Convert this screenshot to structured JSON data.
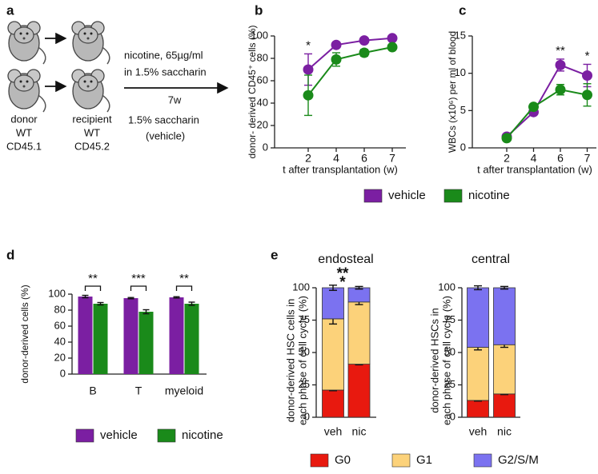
{
  "diagram": {
    "panel": "a",
    "donor": [
      "donor",
      "WT",
      "CD45.1"
    ],
    "recipient": [
      "recipient",
      "WT",
      "CD45.2"
    ],
    "treatment": [
      "nicotine, 65µg/ml",
      "in 1.5% saccharin"
    ],
    "duration": "7w",
    "control": [
      "1.5% saccharin",
      "(vehicle)"
    ]
  },
  "chart_data": [
    {
      "type": "line",
      "panel": "b",
      "xlabel": "t after transplantation (w)",
      "ylabel": "donor- derived CD45⁺ cells (%)",
      "categories": [
        "2",
        "4",
        "6",
        "7"
      ],
      "series": [
        {
          "name": "vehicle",
          "color": "#7b1fa2",
          "values": [
            70,
            92,
            96,
            98
          ],
          "errors": [
            14,
            2,
            2,
            1.5
          ]
        },
        {
          "name": "nicotine",
          "color": "#1a8a1a",
          "values": [
            47,
            79,
            85,
            90
          ],
          "errors": [
            18,
            6,
            3,
            2
          ]
        }
      ],
      "annotations": [
        "*",
        null,
        null,
        null
      ],
      "ylim": [
        0,
        100
      ],
      "yticks": [
        0,
        20,
        40,
        60,
        80,
        100
      ],
      "grid": false
    },
    {
      "type": "line",
      "panel": "c",
      "xlabel": "t after transplantation (w)",
      "ylabel": "WBCs (x10⁶) per ml of blood",
      "categories": [
        "2",
        "4",
        "6",
        "7"
      ],
      "series": [
        {
          "color": "#7b1fa2",
          "values": [
            1.5,
            4.8,
            11.1,
            9.7
          ],
          "errors": [
            0.2,
            0.3,
            0.8,
            1.5
          ]
        },
        {
          "color": "#1a8a1a",
          "values": [
            1.3,
            5.5,
            7.8,
            7.1
          ],
          "errors": [
            0.2,
            0.4,
            0.7,
            1.5
          ]
        }
      ],
      "annotations": [
        null,
        null,
        "**",
        "*"
      ],
      "ylim": [
        0,
        15
      ],
      "yticks": [
        0,
        5,
        10,
        15
      ],
      "grid": false
    },
    {
      "type": "bar",
      "panel": "d",
      "ylabel": "donor-derived  cells (%)",
      "categories": [
        "B",
        "T",
        "myeloid"
      ],
      "series": [
        {
          "name": "vehicle",
          "color": "#7b1fa2",
          "values": [
            97,
            95,
            96
          ],
          "errors": [
            1.5,
            0.8,
            0.8
          ]
        },
        {
          "name": "nicotine",
          "color": "#1a8a1a",
          "values": [
            88,
            78,
            88
          ],
          "errors": [
            1.5,
            2.5,
            2
          ]
        }
      ],
      "annotations": [
        "**",
        "***",
        "**"
      ],
      "ylim": [
        0,
        100
      ],
      "yticks": [
        0,
        20,
        40,
        60,
        80,
        100
      ],
      "grid": false
    },
    {
      "type": "stacked_bar",
      "panel": "e",
      "title": "endosteal",
      "ylabel": [
        "donor-derived HSC cells in",
        "each phase of cell cycle (%)"
      ],
      "categories": [
        "veh",
        "nic"
      ],
      "series": [
        {
          "name": "G0",
          "color": "#e8190f",
          "values": [
            21,
            41
          ],
          "errors": [
            0.5,
            0.5
          ]
        },
        {
          "name": "G1",
          "color": "#fcd27a",
          "values": [
            55,
            48
          ],
          "errors": [
            4,
            2
          ]
        },
        {
          "name": "G2/S/M",
          "color": "#7b72f0",
          "values": [
            24,
            11
          ],
          "errors": [
            2,
            1
          ]
        }
      ],
      "annotations": [
        {
          "text": "**",
          "color": "#7b72f0"
        },
        {
          "text": "*",
          "color": "#e8190f"
        }
      ],
      "ylim": [
        0,
        100
      ],
      "yticks": [
        0,
        25,
        50,
        75,
        100
      ],
      "grid": false
    },
    {
      "type": "stacked_bar",
      "title": "central",
      "ylabel": [
        "donor-derived HSCs in",
        "each phase of cell cycle (%)"
      ],
      "categories": [
        "veh",
        "nic"
      ],
      "series": [
        {
          "color": "#e8190f",
          "values": [
            13,
            18
          ],
          "errors": [
            0.5,
            0.5
          ]
        },
        {
          "color": "#fcd27a",
          "values": [
            41,
            38
          ],
          "errors": [
            2,
            2
          ]
        },
        {
          "color": "#7b72f0",
          "values": [
            46,
            44
          ],
          "errors": [
            1.5,
            1
          ]
        }
      ],
      "ylim": [
        0,
        100
      ],
      "yticks": [
        0,
        25,
        50,
        75,
        100
      ],
      "grid": false
    }
  ]
}
